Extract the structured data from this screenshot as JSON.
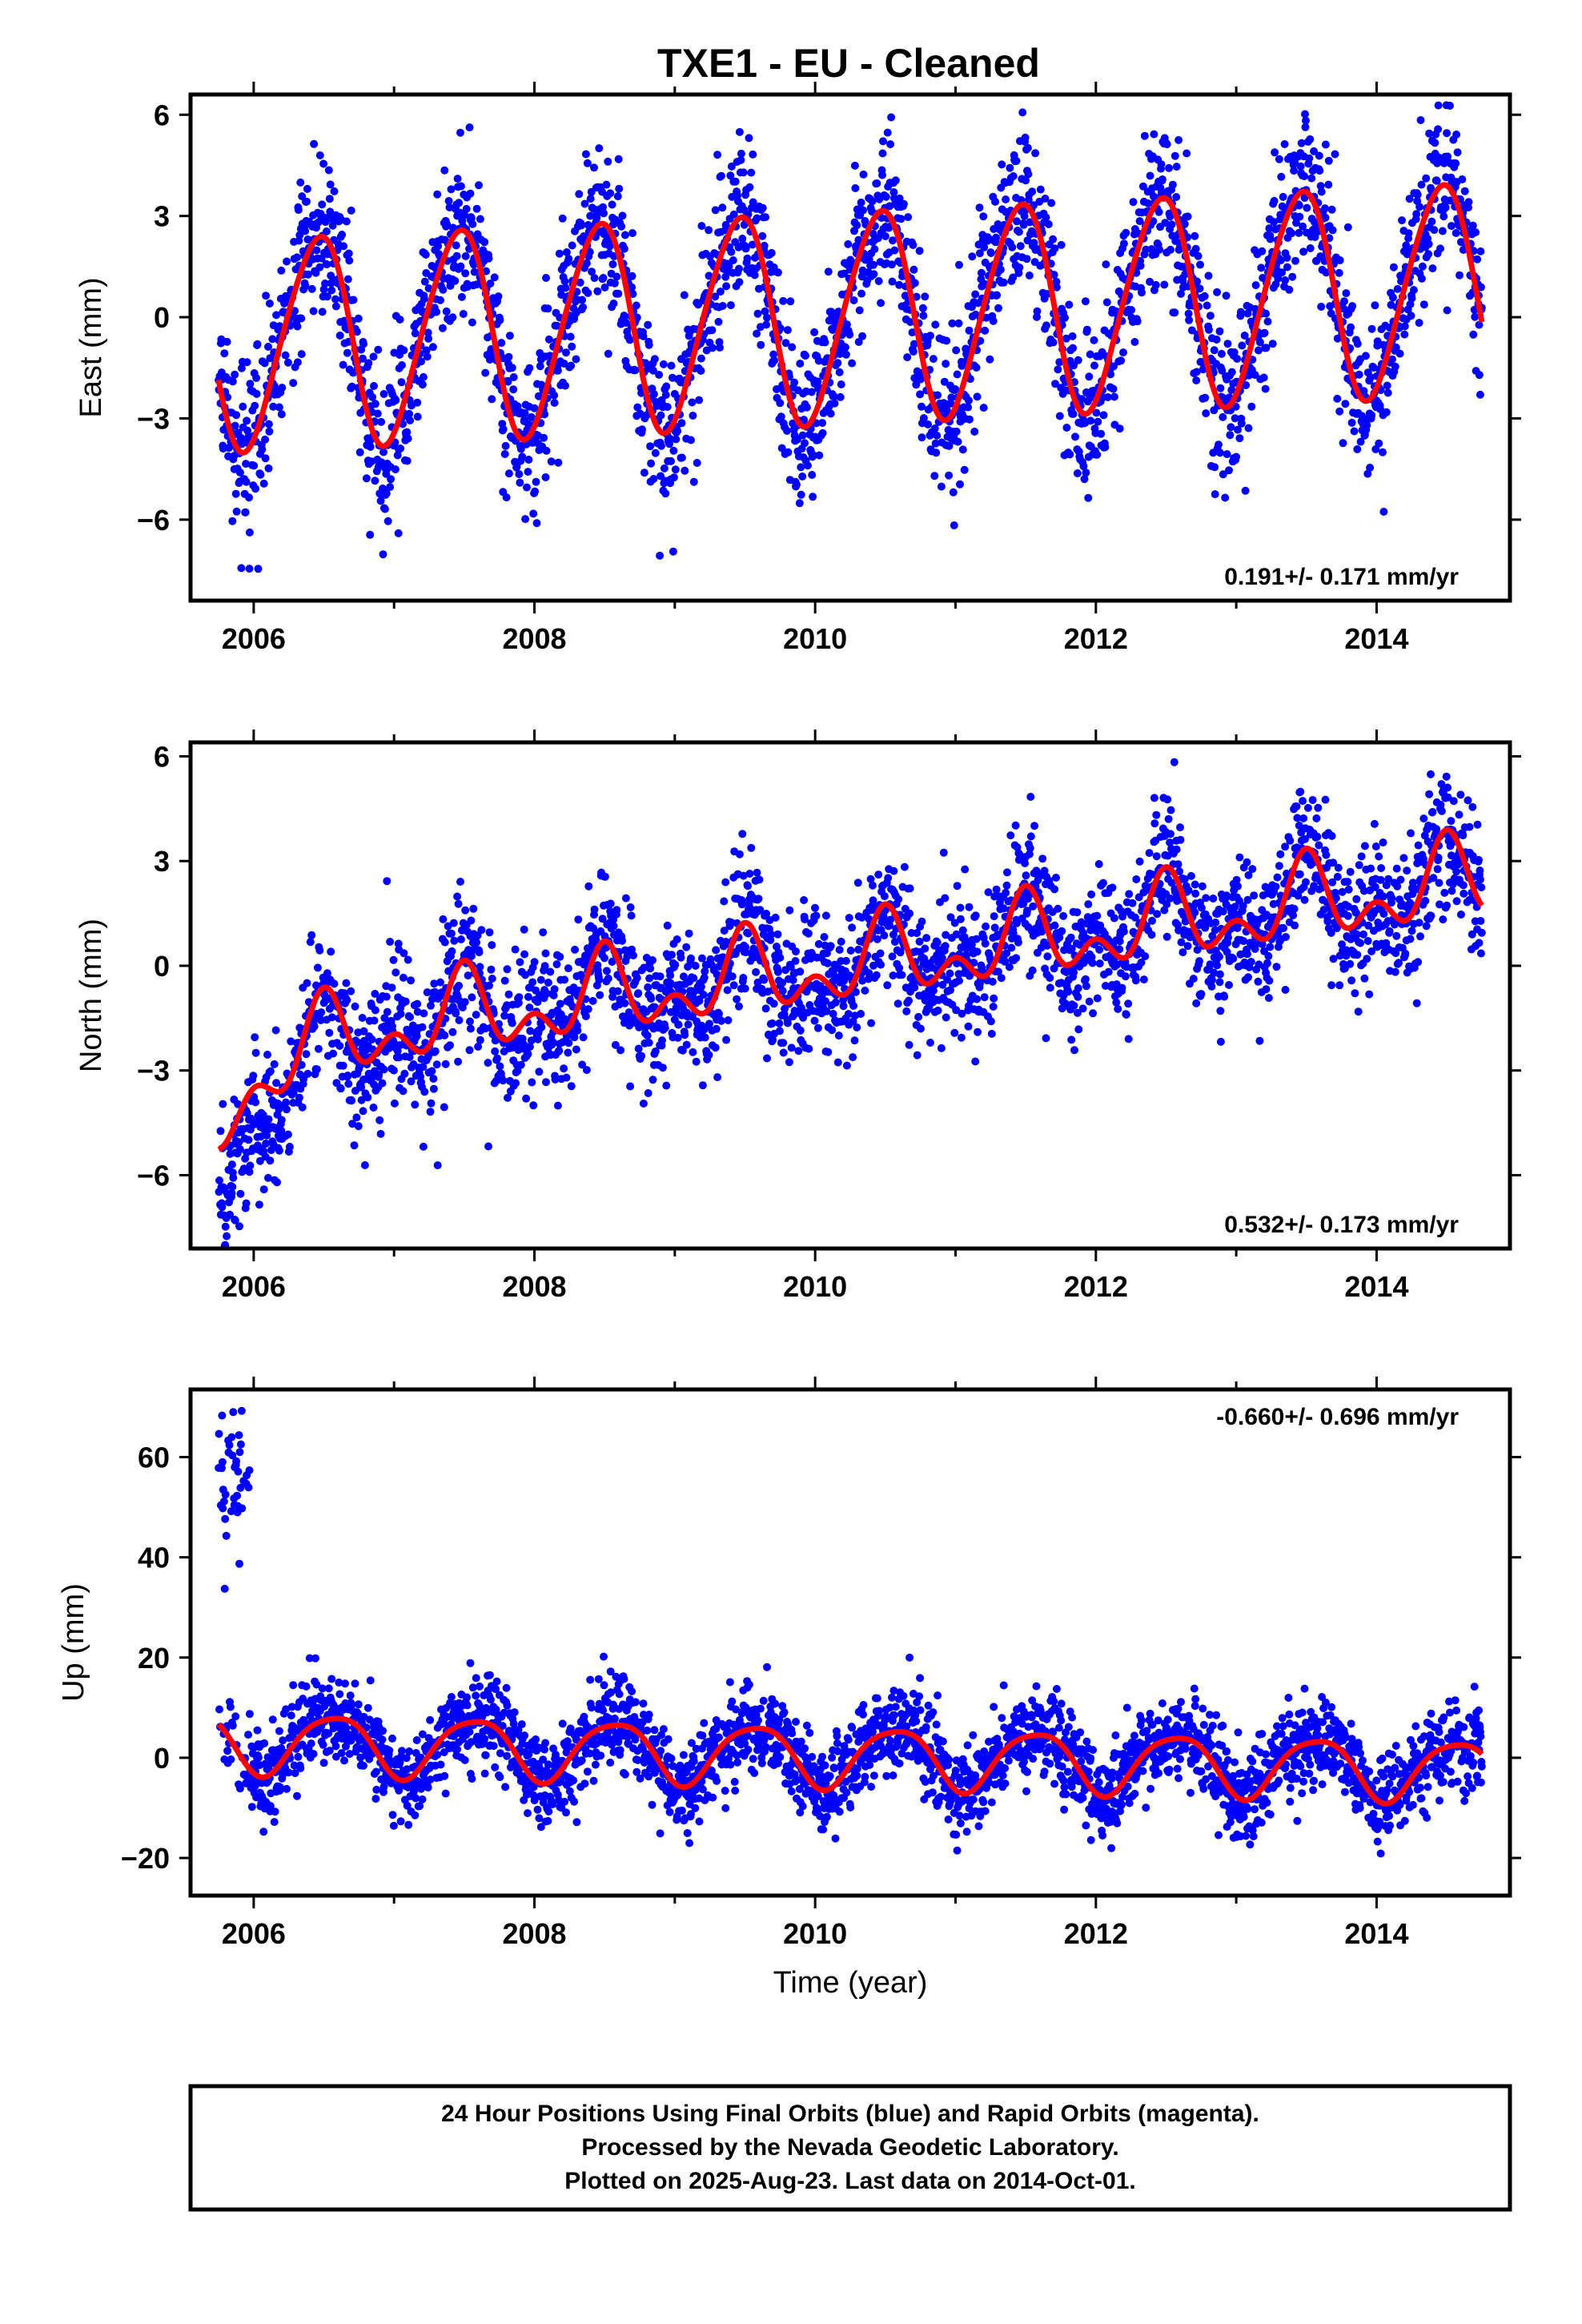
{
  "title": "TXE1  - EU - Cleaned",
  "colors": {
    "final_orbits": "#0000ff",
    "model_fit": "#ff0000",
    "frame": "#000000",
    "rapid_orbits": "#ff00ff"
  },
  "footer": {
    "lines": [
      "24 Hour Positions Using Final Orbits (blue) and Rapid Orbits (magenta).",
      "Processed by the Nevada Geodetic Laboratory.",
      "Plotted on 2025-Aug-23. Last data on 2014-Oct-01."
    ]
  },
  "chart_data": [
    {
      "type": "scatter",
      "id": "east",
      "ylabel": "East (mm)",
      "xlabel": "",
      "rate_label": "0.191+/- 0.171 mm/yr",
      "rate_position": "bottom-right",
      "xlim": [
        2005.55,
        2014.95
      ],
      "ylim": [
        -8.4,
        6.6
      ],
      "xticks": [
        2006,
        2008,
        2010,
        2012,
        2014
      ],
      "xtick_labels": [
        "2006",
        "2008",
        "2010",
        "2012",
        "2014"
      ],
      "yticks": [
        -6,
        -3,
        0,
        3,
        6
      ],
      "ytick_labels": [
        "−6",
        "−3",
        "0",
        "3",
        "6"
      ],
      "grid": false,
      "data_start": 2005.75,
      "data_end": 2014.75,
      "series": [
        {
          "name": "Final Orbits",
          "role": "points",
          "color": "#0000ff",
          "model": {
            "x0": 2010,
            "offset": 0.0,
            "rate": 0.191,
            "annual_amp": 3.1,
            "annual_peak": 0.45,
            "semiannual_amp": 0.3,
            "semiannual_peak": 0.1,
            "noise_sd": 1.2
          }
        },
        {
          "name": "Model fit",
          "role": "line",
          "color": "#ff0000",
          "model": {
            "x0": 2010,
            "offset": 0.0,
            "rate": 0.191,
            "annual_amp": 3.1,
            "annual_peak": 0.45,
            "semiannual_amp": 0.3,
            "semiannual_peak": 0.1
          }
        }
      ]
    },
    {
      "type": "scatter",
      "id": "north",
      "ylabel": "North (mm)",
      "xlabel": "",
      "rate_label": "0.532+/- 0.173 mm/yr",
      "rate_position": "bottom-right",
      "xlim": [
        2005.55,
        2014.95
      ],
      "ylim": [
        -8.1,
        6.4
      ],
      "xticks": [
        2006,
        2008,
        2010,
        2012,
        2014
      ],
      "xtick_labels": [
        "2006",
        "2008",
        "2010",
        "2012",
        "2014"
      ],
      "yticks": [
        -6,
        -3,
        0,
        3,
        6
      ],
      "ytick_labels": [
        "−6",
        "−3",
        "0",
        "3",
        "6"
      ],
      "grid": false,
      "data_start": 2005.75,
      "data_end": 2014.75,
      "series": [
        {
          "name": "Final Orbits",
          "role": "points",
          "color": "#0000ff",
          "model": {
            "x0": 2010,
            "offset": -0.1,
            "rate": 0.532,
            "annual_amp": 0.9,
            "annual_peak": 0.5,
            "semiannual_amp": 0.7,
            "semiannual_peak": 0.0,
            "transient_amp": -4.0,
            "transient_tau": 0.35,
            "noise_sd": 1.0
          }
        },
        {
          "name": "Model fit",
          "role": "line",
          "color": "#ff0000",
          "model": {
            "x0": 2010,
            "offset": -0.1,
            "rate": 0.532,
            "annual_amp": 0.9,
            "annual_peak": 0.5,
            "semiannual_amp": 0.7,
            "semiannual_peak": 0.0,
            "transient_amp": -2.2,
            "transient_tau": 0.35
          }
        }
      ]
    },
    {
      "type": "scatter",
      "id": "up",
      "ylabel": "Up (mm)",
      "xlabel": "Time (year)",
      "rate_label": "-0.660+/- 0.696 mm/yr",
      "rate_position": "top-right",
      "xlim": [
        2005.55,
        2014.95
      ],
      "ylim": [
        -27.5,
        73.5
      ],
      "xticks": [
        2006,
        2008,
        2010,
        2012,
        2014
      ],
      "xtick_labels": [
        "2006",
        "2008",
        "2010",
        "2012",
        "2014"
      ],
      "yticks": [
        -20,
        0,
        20,
        40,
        60
      ],
      "ytick_labels": [
        "−20",
        "0",
        "20",
        "40",
        "60"
      ],
      "grid": false,
      "data_start": 2005.75,
      "data_end": 2014.75,
      "outlier_segment": {
        "x_start": 2005.75,
        "x_end": 2005.97,
        "y_center": 55.0,
        "y_spread": 6.0
      },
      "series": [
        {
          "name": "Final Orbits",
          "role": "points",
          "color": "#0000ff",
          "model": {
            "x0": 2010,
            "offset": 0.5,
            "rate": -0.66,
            "annual_amp": 6.0,
            "annual_peak": 0.57,
            "semiannual_amp": 1.0,
            "semiannual_peak": 0.3,
            "noise_sd": 4.5
          }
        },
        {
          "name": "Model fit",
          "role": "line",
          "color": "#ff0000",
          "model": {
            "x0": 2010,
            "offset": 0.5,
            "rate": -0.66,
            "annual_amp": 6.0,
            "annual_peak": 0.57,
            "semiannual_amp": 1.0,
            "semiannual_peak": 0.3
          }
        }
      ]
    }
  ]
}
